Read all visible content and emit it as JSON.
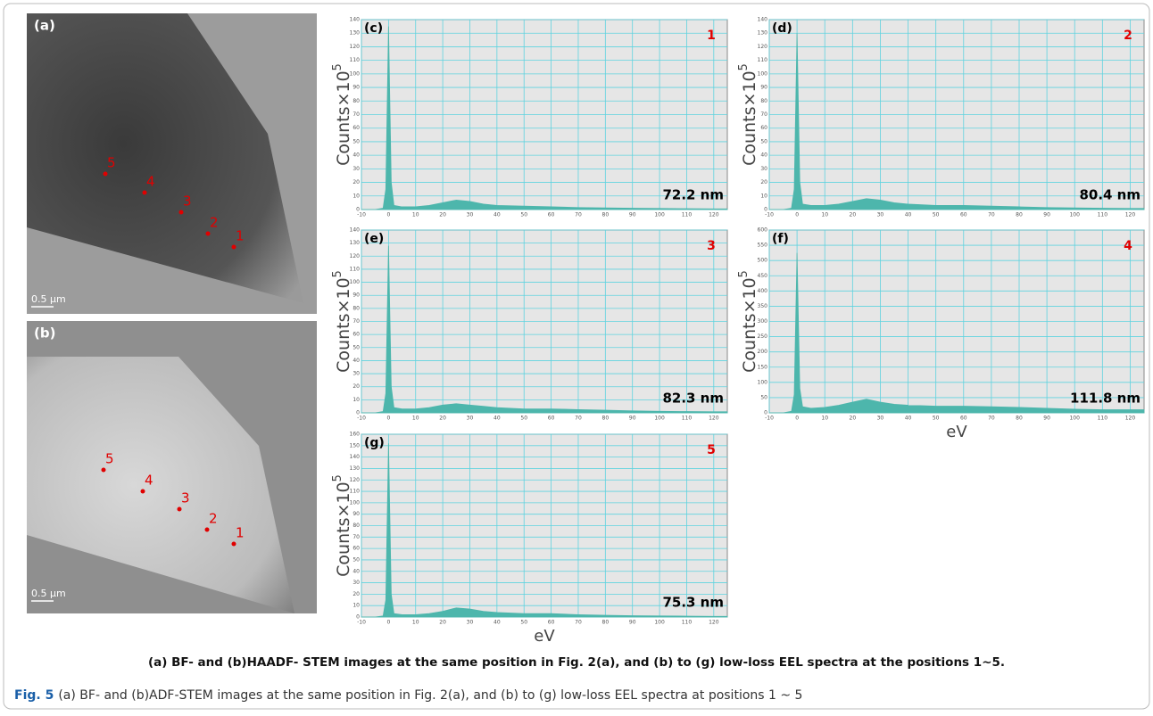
{
  "images": [
    {
      "label": "(a)",
      "points": [
        "1",
        "2",
        "3",
        "4",
        "5"
      ],
      "scale_bar": "0.5 µm"
    },
    {
      "label": "(b)",
      "points": [
        "1",
        "2",
        "3",
        "4",
        "5"
      ],
      "scale_bar": "0.5 µm"
    }
  ],
  "chart_data": [
    {
      "type": "area",
      "panel_label": "(c)",
      "position_label": "1",
      "annotation": "72.2 nm",
      "y_label": "Counts×10",
      "y_label_superscript": "5",
      "color": "#4db6ac",
      "grid": true,
      "xlim": [
        -10,
        125
      ],
      "ylim": [
        0,
        140
      ],
      "xticks": [
        -10,
        0,
        10,
        20,
        30,
        40,
        50,
        60,
        70,
        80,
        90,
        100,
        110,
        120
      ],
      "yticks": [
        0,
        10,
        20,
        30,
        40,
        50,
        60,
        70,
        80,
        90,
        100,
        110,
        120,
        130,
        140
      ],
      "x": [
        -10,
        -5,
        -2,
        -1,
        0,
        1,
        2,
        5,
        10,
        15,
        20,
        25,
        30,
        35,
        40,
        50,
        60,
        70,
        80,
        90,
        100,
        110,
        120,
        125
      ],
      "values": [
        0,
        0,
        1,
        15,
        135,
        20,
        3,
        2,
        2,
        3,
        5,
        7,
        6,
        4,
        3,
        2.5,
        2,
        1.5,
        1.2,
        1,
        0.8,
        0.6,
        0.5,
        0.5
      ]
    },
    {
      "type": "area",
      "panel_label": "(d)",
      "position_label": "2",
      "annotation": "80.4 nm",
      "y_label": "Counts×10",
      "y_label_superscript": "5",
      "color": "#4db6ac",
      "grid": true,
      "xlim": [
        -10,
        125
      ],
      "ylim": [
        0,
        140
      ],
      "xticks": [
        -10,
        0,
        10,
        20,
        30,
        40,
        50,
        60,
        70,
        80,
        90,
        100,
        110,
        120
      ],
      "yticks": [
        0,
        10,
        20,
        30,
        40,
        50,
        60,
        70,
        80,
        90,
        100,
        110,
        120,
        130,
        140
      ],
      "x": [
        -10,
        -5,
        -2,
        -1,
        0,
        1,
        2,
        5,
        10,
        15,
        20,
        25,
        30,
        35,
        40,
        50,
        60,
        70,
        80,
        90,
        100,
        110,
        120,
        125
      ],
      "values": [
        0,
        0,
        1,
        15,
        130,
        20,
        4,
        3,
        3,
        4,
        6,
        8,
        7,
        5,
        4,
        3,
        3,
        2.5,
        2,
        1.5,
        1.2,
        1,
        0.8,
        0.8
      ]
    },
    {
      "type": "area",
      "panel_label": "(e)",
      "position_label": "3",
      "annotation": "82.3 nm",
      "y_label": "Counts×10",
      "y_label_superscript": "5",
      "color": "#4db6ac",
      "grid": true,
      "xlim": [
        -10,
        125
      ],
      "ylim": [
        0,
        140
      ],
      "xticks": [
        -10,
        0,
        10,
        20,
        30,
        40,
        50,
        60,
        70,
        80,
        90,
        100,
        110,
        120
      ],
      "yticks": [
        0,
        10,
        20,
        30,
        40,
        50,
        60,
        70,
        80,
        90,
        100,
        110,
        120,
        130,
        140
      ],
      "x": [
        -10,
        -5,
        -2,
        -1,
        0,
        1,
        2,
        5,
        10,
        15,
        20,
        25,
        30,
        35,
        40,
        50,
        60,
        70,
        80,
        90,
        100,
        110,
        120,
        125
      ],
      "values": [
        0,
        0,
        1,
        15,
        128,
        20,
        4,
        3,
        3,
        4,
        6,
        7,
        6,
        5,
        4,
        3,
        3,
        2.5,
        2,
        1.5,
        1.2,
        1,
        0.8,
        0.8
      ]
    },
    {
      "type": "area",
      "panel_label": "(f)",
      "position_label": "4",
      "annotation": "111.8 nm",
      "y_label": "Counts×10",
      "y_label_superscript": "5",
      "x_label": "eV",
      "color": "#4db6ac",
      "grid": true,
      "xlim": [
        -10,
        125
      ],
      "ylim": [
        0,
        600
      ],
      "xticks": [
        -10,
        0,
        10,
        20,
        30,
        40,
        50,
        60,
        70,
        80,
        90,
        100,
        110,
        120
      ],
      "yticks": [
        0,
        50,
        100,
        150,
        200,
        250,
        300,
        350,
        400,
        450,
        500,
        550,
        600
      ],
      "x": [
        -10,
        -5,
        -2,
        -1,
        0,
        1,
        2,
        5,
        10,
        15,
        20,
        25,
        30,
        35,
        40,
        50,
        60,
        70,
        80,
        90,
        100,
        110,
        120,
        125
      ],
      "values": [
        0,
        0,
        5,
        60,
        525,
        80,
        20,
        15,
        18,
        25,
        35,
        45,
        35,
        28,
        25,
        22,
        22,
        20,
        18,
        15,
        12,
        10,
        10,
        10
      ]
    },
    {
      "type": "area",
      "panel_label": "(g)",
      "position_label": "5",
      "annotation": "75.3 nm",
      "y_label": "Counts×10",
      "y_label_superscript": "5",
      "x_label": "eV",
      "color": "#4db6ac",
      "grid": true,
      "xlim": [
        -10,
        125
      ],
      "ylim": [
        0,
        160
      ],
      "xticks": [
        -10,
        0,
        10,
        20,
        30,
        40,
        50,
        60,
        70,
        80,
        90,
        100,
        110,
        120
      ],
      "yticks": [
        0,
        10,
        20,
        30,
        40,
        50,
        60,
        70,
        80,
        90,
        100,
        110,
        120,
        130,
        140,
        150,
        160
      ],
      "x": [
        -10,
        -5,
        -2,
        -1,
        0,
        1,
        2,
        5,
        10,
        15,
        20,
        25,
        30,
        35,
        40,
        50,
        60,
        70,
        80,
        90,
        100,
        110,
        120,
        125
      ],
      "values": [
        0,
        0,
        1,
        15,
        152,
        20,
        3,
        2,
        2,
        3,
        5,
        8,
        7,
        5,
        4,
        3,
        3,
        2,
        1.5,
        1.2,
        1,
        0.8,
        0.6,
        0.6
      ]
    }
  ],
  "inner_caption": "(a) BF- and (b)HAADF- STEM images at the same position in Fig. 2(a), and (b) to (g) low-loss EEL spectra at the positions 1~5.",
  "caption": {
    "label": "Fig. 5",
    "text": "(a) BF- and (b)ADF-STEM images at the same position in Fig. 2(a), and (b) to (g) low-loss EEL spectra at positions 1 ~ 5"
  }
}
